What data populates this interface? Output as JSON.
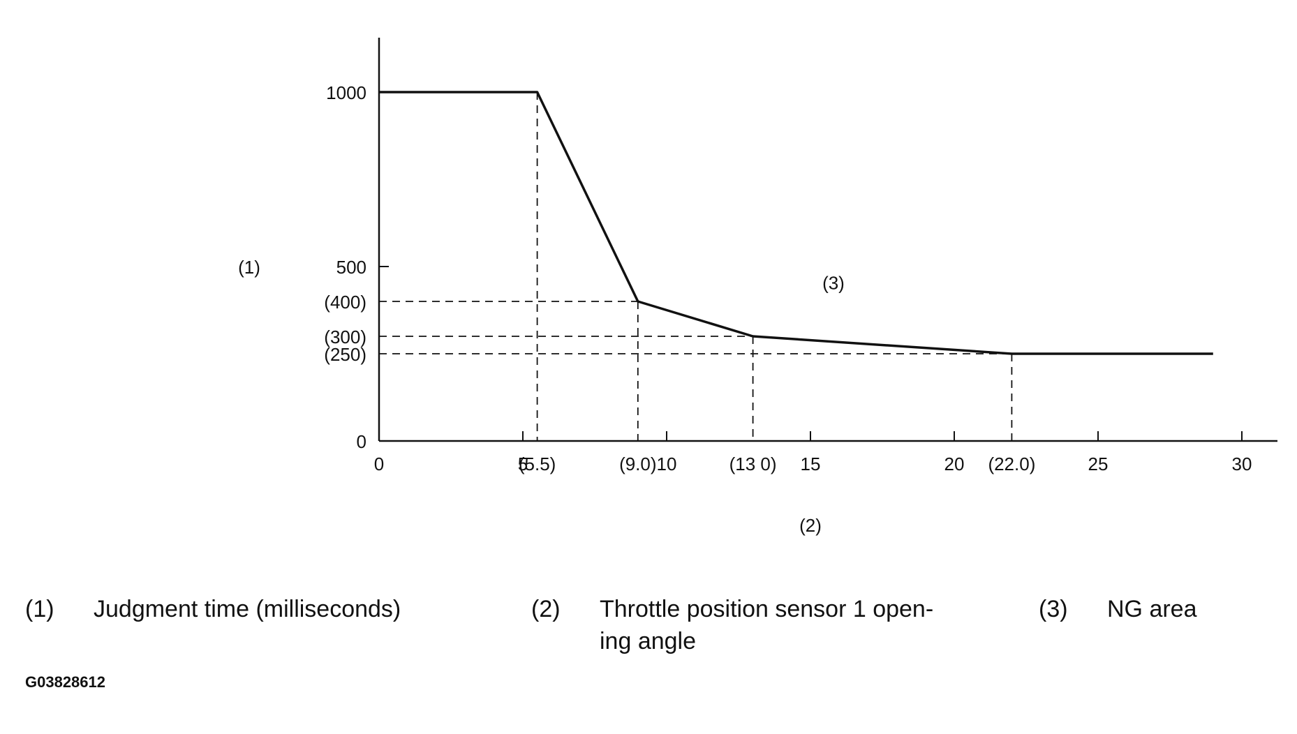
{
  "chart_data": {
    "type": "line",
    "x_axis": {
      "range": [
        0,
        30
      ],
      "ticks": [
        0,
        5,
        10,
        15,
        20,
        25,
        30
      ],
      "tick_labels": [
        "0",
        "5",
        "10",
        "15",
        "20",
        "25",
        "30"
      ],
      "marked_values": [
        {
          "value": 5.5,
          "label": "(5.5)"
        },
        {
          "value": 9.0,
          "label": "(9.0)"
        },
        {
          "value": 13.0,
          "label": "(13 0)"
        },
        {
          "value": 22.0,
          "label": "(22.0)"
        }
      ],
      "label": "(2)"
    },
    "y_axis": {
      "range": [
        0,
        1100
      ],
      "ticks": [
        0,
        500,
        1000
      ],
      "tick_labels": [
        "0",
        "500",
        "1000"
      ],
      "marked_values": [
        {
          "value": 400,
          "label": "(400)"
        },
        {
          "value": 300,
          "label": "(300)"
        },
        {
          "value": 250,
          "label": "(250)"
        }
      ],
      "label": "(1)"
    },
    "series": [
      {
        "x": [
          0,
          5.5,
          9.0,
          13.0,
          22.0,
          29.0
        ],
        "y": [
          1000,
          1000,
          400,
          300,
          250,
          250
        ]
      }
    ],
    "area_label": "(3)",
    "grid": false
  },
  "legend": [
    {
      "num": "(1)",
      "text": "Judgment time (milliseconds)"
    },
    {
      "num": "(2)",
      "text_line1": "Throttle position sensor 1 open-",
      "text_line2": "ing angle"
    },
    {
      "num": "(3)",
      "text": "NG area"
    }
  ],
  "figure_id": "G03828612"
}
